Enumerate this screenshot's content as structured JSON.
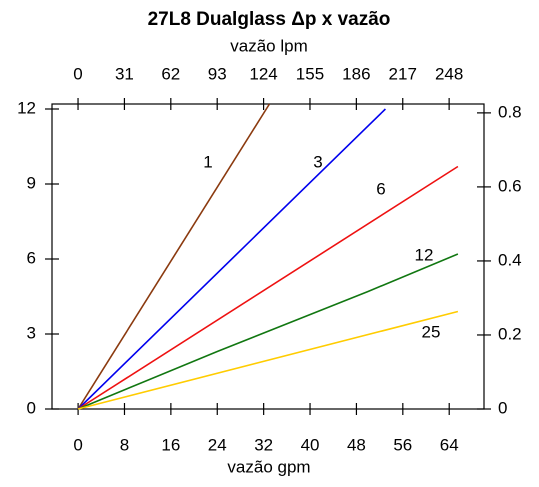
{
  "chart_data": {
    "type": "line",
    "title": "27L8 Dualglass Δp x vazão",
    "xlabel": "vazão gpm",
    "x2label": "vazão lpm",
    "xlim": [
      -4.5,
      70
    ],
    "xticks": [
      0,
      8,
      16,
      24,
      32,
      40,
      48,
      56,
      64
    ],
    "x2lim": [
      -17.4,
      271.3
    ],
    "x2ticks": [
      0,
      31,
      62,
      93,
      124,
      155,
      186,
      217,
      248
    ],
    "ylim": [
      0,
      12.2
    ],
    "yticks": [
      0,
      3,
      6,
      9,
      12
    ],
    "y2lim": [
      0,
      0.824
    ],
    "y2ticks": [
      0,
      0.2,
      0.4,
      0.6,
      0.8
    ],
    "series": [
      {
        "name": "1",
        "color": "#8b3a0f",
        "x": [
          0,
          33
        ],
        "values": [
          0,
          12.2
        ]
      },
      {
        "name": "3",
        "color": "#0000ee",
        "x": [
          0,
          53
        ],
        "values": [
          0,
          12
        ]
      },
      {
        "name": "6",
        "color": "#ee1111",
        "x": [
          0,
          65.5
        ],
        "values": [
          0,
          9.7
        ]
      },
      {
        "name": "12",
        "color": "#117711",
        "x": [
          0,
          24,
          50,
          65.5
        ],
        "values": [
          0,
          2.3,
          4.7,
          6.2
        ]
      },
      {
        "name": "25",
        "color": "#ffcc00",
        "x": [
          0,
          65.5
        ],
        "values": [
          0,
          3.9
        ]
      }
    ]
  }
}
